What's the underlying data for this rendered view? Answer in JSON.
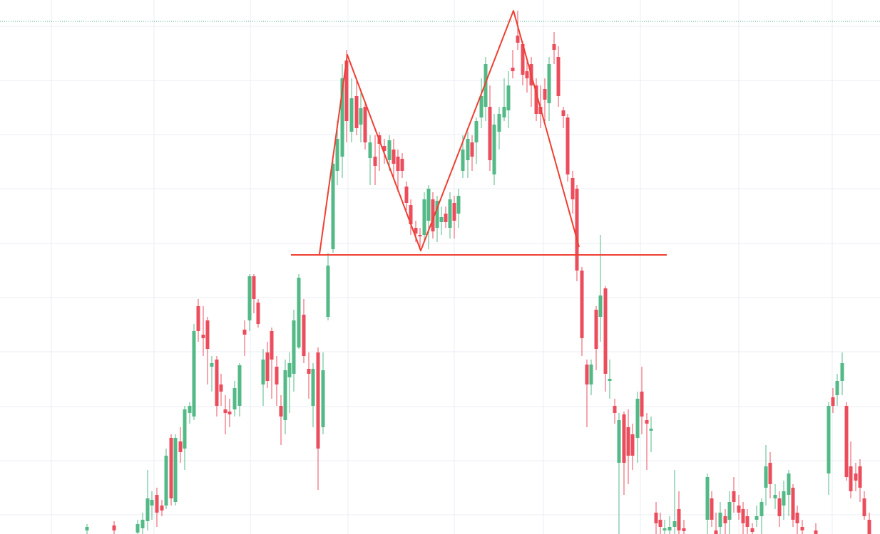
{
  "chart_data": {
    "type": "candlestick",
    "up_color": "#53b987",
    "down_color": "#eb4d5c",
    "grid": true,
    "grid_color": "#e9eef3",
    "xlim": [
      0,
      1234
    ],
    "ylim": [
      0,
      750
    ],
    "xticks": [
      72,
      216,
      351,
      488,
      637,
      762,
      898,
      1036,
      1167
    ],
    "yticks": [
      27,
      103,
      179,
      256,
      332,
      408,
      485,
      561,
      637,
      713
    ],
    "x": [
      122,
      160,
      193,
      200,
      207,
      213,
      220,
      227,
      233,
      240,
      246,
      253,
      259,
      266,
      272,
      278,
      285,
      291,
      297,
      304,
      310,
      316,
      322,
      329,
      336,
      343,
      350,
      356,
      362,
      369,
      375,
      381,
      388,
      394,
      400,
      406,
      412,
      419,
      426,
      433,
      439,
      446,
      453,
      460,
      467,
      473,
      480,
      486,
      493,
      500,
      506,
      512,
      519,
      526,
      532,
      539,
      546,
      552,
      558,
      564,
      570,
      576,
      583,
      589,
      595,
      601,
      607,
      613,
      619,
      625,
      631,
      637,
      643,
      649,
      656,
      662,
      668,
      675,
      681,
      687,
      693,
      700,
      707,
      713,
      719,
      726,
      733,
      739,
      745,
      752,
      758,
      764,
      770,
      777,
      783,
      790,
      796,
      803,
      809,
      816,
      823,
      829,
      836,
      842,
      849,
      855,
      862,
      868,
      875,
      881,
      887,
      894,
      900,
      907,
      913,
      920,
      926,
      932,
      939,
      946,
      952,
      959,
      992,
      998,
      1004,
      1010,
      1017,
      1023,
      1029,
      1036,
      1042,
      1048,
      1055,
      1061,
      1068,
      1074,
      1080,
      1087,
      1093,
      1099,
      1106,
      1112,
      1118,
      1125,
      1144,
      1162,
      1168,
      1174,
      1181,
      1187,
      1193,
      1200,
      1206,
      1212,
      1219
    ],
    "open": [
      5,
      12,
      2,
      8,
      18,
      40,
      55,
      40,
      40,
      135,
      45,
      130,
      120,
      170,
      165,
      320,
      280,
      300,
      235,
      245,
      210,
      175,
      172,
      175,
      180,
      287,
      300,
      362,
      325,
      210,
      255,
      285,
      235,
      180,
      160,
      220,
      225,
      262,
      308,
      232,
      180,
      255,
      150,
      305,
      400,
      510,
      530,
      665,
      565,
      615,
      575,
      600,
      528,
      530,
      560,
      545,
      525,
      540,
      530,
      527,
      488,
      462,
      430,
      420,
      420,
      440,
      470,
      430,
      438,
      450,
      430,
      465,
      450,
      510,
      525,
      550,
      550,
      585,
      600,
      600,
      505,
      565,
      585,
      595,
      655,
      700,
      688,
      650,
      660,
      630,
      600,
      625,
      605,
      688,
      670,
      595,
      585,
      500,
      485,
      370,
      238,
      210,
      315,
      305,
      345,
      215,
      180,
      100,
      168,
      150,
      140,
      135,
      200,
      160,
      145,
      30,
      20,
      5,
      5,
      10,
      35,
      8,
      20,
      50,
      5,
      10,
      25,
      20,
      60,
      40,
      35,
      25,
      8,
      20,
      25,
      65,
      100,
      50,
      50,
      40,
      55,
      65,
      30,
      10,
      5,
      85,
      192,
      195,
      215,
      180,
      95,
      85,
      95,
      50,
      20
    ],
    "high": [
      14,
      18,
      20,
      30,
      90,
      60,
      65,
      48,
      120,
      140,
      140,
      150,
      180,
      185,
      295,
      330,
      320,
      305,
      250,
      250,
      225,
      195,
      190,
      215,
      240,
      300,
      365,
      365,
      330,
      260,
      270,
      290,
      250,
      195,
      245,
      255,
      315,
      365,
      330,
      255,
      240,
      262,
      255,
      395,
      530,
      580,
      660,
      680,
      640,
      640,
      620,
      605,
      560,
      560,
      565,
      555,
      560,
      555,
      540,
      535,
      495,
      470,
      440,
      430,
      480,
      490,
      480,
      475,
      460,
      460,
      480,
      475,
      485,
      560,
      565,
      560,
      585,
      640,
      670,
      630,
      590,
      600,
      640,
      650,
      680,
      735,
      692,
      665,
      670,
      640,
      630,
      640,
      670,
      705,
      685,
      600,
      590,
      510,
      490,
      375,
      245,
      245,
      320,
      420,
      348,
      245,
      190,
      170,
      172,
      175,
      155,
      200,
      235,
      170,
      165,
      45,
      30,
      20,
      25,
      90,
      60,
      20,
      85,
      60,
      30,
      45,
      35,
      60,
      80,
      55,
      45,
      35,
      15,
      40,
      50,
      125,
      115,
      70,
      60,
      75,
      90,
      70,
      40,
      20,
      15,
      185,
      205,
      225,
      255,
      185,
      130,
      100,
      105,
      60,
      30
    ],
    "low": [
      0,
      0,
      0,
      0,
      5,
      20,
      10,
      25,
      35,
      40,
      40,
      100,
      90,
      155,
      160,
      270,
      250,
      210,
      200,
      165,
      180,
      140,
      150,
      165,
      165,
      250,
      285,
      310,
      290,
      180,
      205,
      190,
      180,
      125,
      140,
      170,
      200,
      260,
      240,
      190,
      150,
      62,
      140,
      300,
      395,
      490,
      500,
      550,
      550,
      560,
      550,
      540,
      490,
      490,
      510,
      520,
      510,
      500,
      480,
      500,
      455,
      420,
      410,
      400,
      410,
      400,
      415,
      410,
      420,
      430,
      415,
      415,
      430,
      500,
      500,
      510,
      520,
      570,
      580,
      510,
      490,
      540,
      580,
      570,
      640,
      680,
      630,
      620,
      600,
      580,
      570,
      580,
      580,
      660,
      600,
      570,
      495,
      450,
      355,
      250,
      150,
      195,
      230,
      270,
      200,
      190,
      155,
      0,
      55,
      70,
      90,
      100,
      140,
      90,
      115,
      0,
      0,
      0,
      0,
      0,
      0,
      0,
      0,
      10,
      0,
      0,
      0,
      0,
      30,
      20,
      0,
      0,
      0,
      10,
      0,
      40,
      50,
      35,
      10,
      20,
      25,
      10,
      0,
      0,
      0,
      55,
      170,
      180,
      195,
      75,
      50,
      60,
      45,
      20,
      0
    ],
    "close": [
      10,
      5,
      14,
      20,
      50,
      48,
      30,
      33,
      110,
      50,
      135,
      115,
      175,
      180,
      285,
      285,
      275,
      260,
      240,
      180,
      200,
      170,
      168,
      205,
      237,
      280,
      362,
      330,
      295,
      245,
      215,
      245,
      210,
      165,
      230,
      240,
      300,
      360,
      250,
      225,
      232,
      120,
      230,
      377,
      520,
      555,
      640,
      580,
      612,
      570,
      598,
      550,
      550,
      517,
      548,
      538,
      553,
      520,
      510,
      510,
      465,
      435,
      422,
      418,
      470,
      485,
      425,
      468,
      445,
      438,
      470,
      440,
      475,
      540,
      555,
      530,
      580,
      615,
      660,
      525,
      575,
      590,
      600,
      630,
      650,
      690,
      645,
      640,
      630,
      590,
      590,
      610,
      660,
      680,
      615,
      587,
      505,
      470,
      370,
      275,
      210,
      238,
      260,
      335,
      225,
      218,
      170,
      160,
      100,
      110,
      110,
      190,
      165,
      155,
      148,
      15,
      10,
      8,
      10,
      18,
      5,
      4,
      80,
      20,
      0,
      30,
      15,
      45,
      45,
      30,
      15,
      10,
      3,
      25,
      45,
      95,
      70,
      55,
      25,
      60,
      85,
      20,
      15,
      5,
      0,
      180,
      180,
      215,
      240,
      80,
      60,
      75,
      65,
      25,
      0
    ],
    "pattern": {
      "color": "#ef3f32",
      "x": [
        448,
        487,
        590,
        720,
        812
      ],
      "values": [
        393,
        673,
        398,
        735,
        403
      ]
    },
    "neckline": {
      "color": "#ef3f32",
      "x": [
        408,
        935
      ],
      "values": [
        392,
        392
      ]
    },
    "price_line": {
      "color": "#3fae8c",
      "value": 720
    }
  }
}
